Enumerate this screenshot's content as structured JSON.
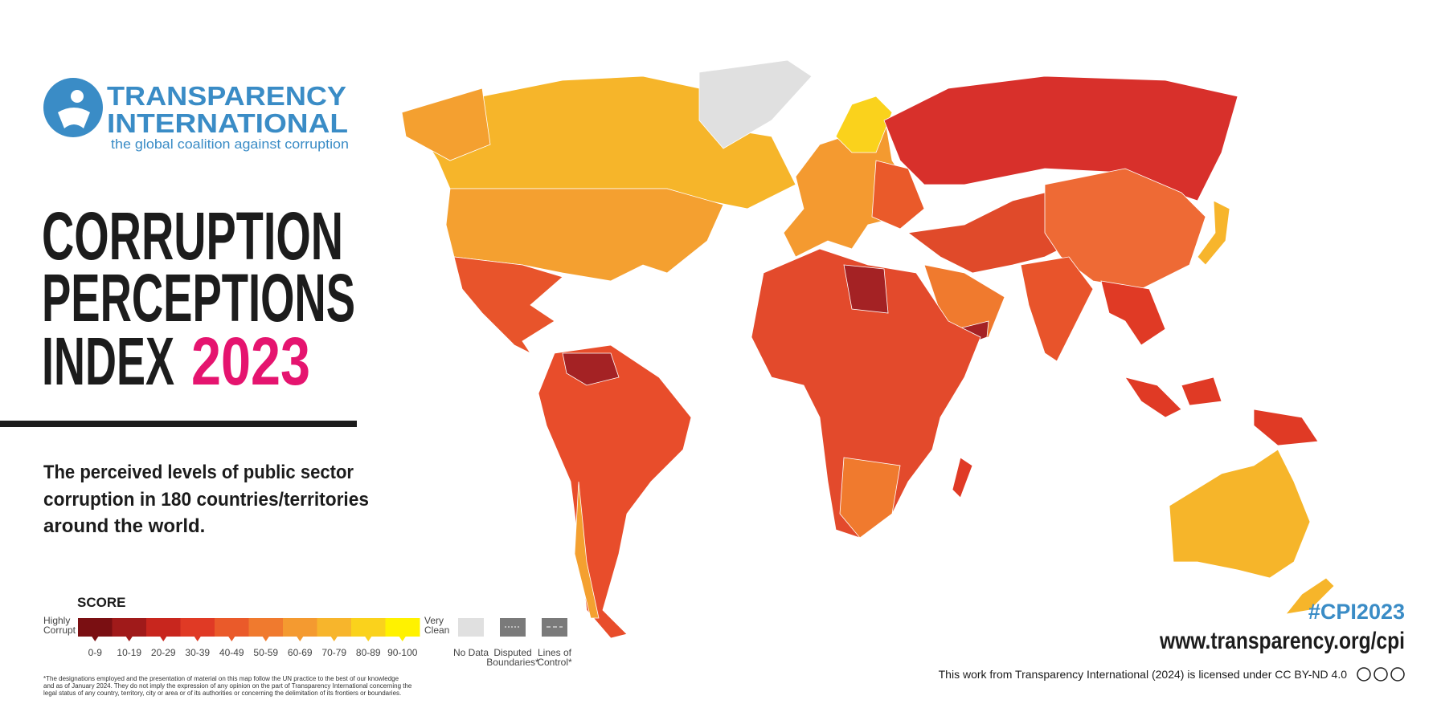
{
  "header": {
    "org_line1": "TRANSPARENCY",
    "org_line2": "INTERNATIONAL",
    "tagline": "the global coalition against corruption"
  },
  "title": {
    "line1": "CORRUPTION",
    "line2": "PERCEPTIONS",
    "line3": "INDEX",
    "year": "2023"
  },
  "description": {
    "lines": [
      "The perceived levels of public sector",
      "corruption in 180 countries/territories",
      "around the world."
    ]
  },
  "legend": {
    "title": "SCORE",
    "low_label": [
      "Highly",
      "Corrupt"
    ],
    "high_label": [
      "Very",
      "Clean"
    ],
    "bins": [
      {
        "label": "0-9",
        "color": "#7a0f12"
      },
      {
        "label": "10-19",
        "color": "#a01a1a"
      },
      {
        "label": "20-29",
        "color": "#c8261e"
      },
      {
        "label": "30-39",
        "color": "#e03a25"
      },
      {
        "label": "40-49",
        "color": "#ea5a2a"
      },
      {
        "label": "50-59",
        "color": "#f07a2e"
      },
      {
        "label": "60-69",
        "color": "#f49a30"
      },
      {
        "label": "70-79",
        "color": "#f7b52c"
      },
      {
        "label": "80-89",
        "color": "#fad21c"
      },
      {
        "label": "90-100",
        "color": "#fff200"
      }
    ],
    "extras": [
      {
        "lines": [
          "No Data"
        ]
      },
      {
        "lines": [
          "Disputed",
          "Boundaries*"
        ]
      },
      {
        "lines": [
          "Lines of",
          "Control*"
        ]
      }
    ]
  },
  "disclaimer": [
    "*The designations employed and the presentation of material on this map follow the UN practice to the best of our knowledge",
    "and as of January 2024. They do not imply the expression of any opinion on the part of Transparency International concerning the",
    "legal status of any country, territory, city or area or of its authorities or concerning the delimitation of its frontiers or boundaries."
  ],
  "hashtag": "#CPI2023",
  "url": "www.transparency.org/cpi",
  "license": "This work from Transparency International (2024) is licensed under CC BY-ND 4.0"
}
